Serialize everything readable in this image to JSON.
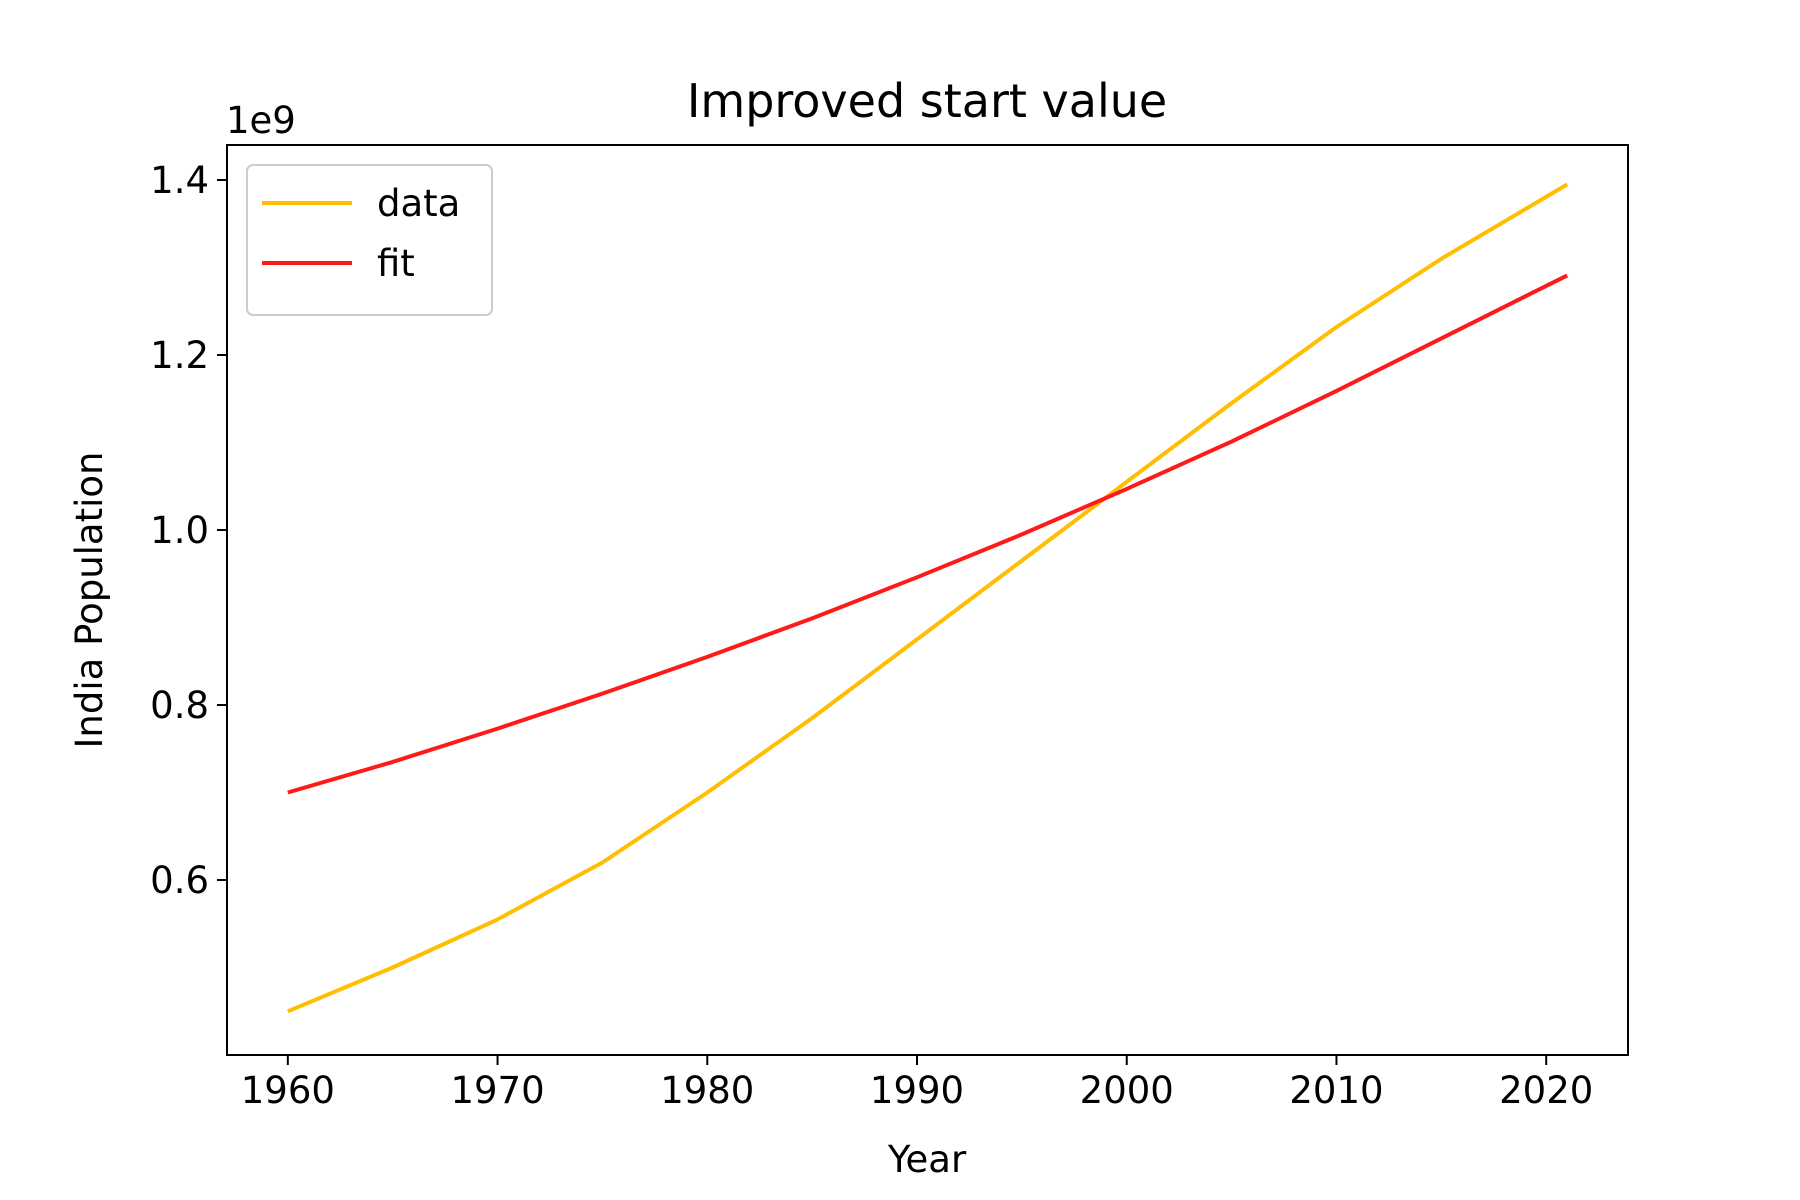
{
  "chart_data": {
    "type": "line",
    "title": "Improved start value",
    "xlabel": "Year",
    "ylabel": "India Population",
    "offset_label": "1e9",
    "xlim": [
      1957.1,
      2023.9
    ],
    "ylim": [
      0.4,
      1.44
    ],
    "x_ticks": [
      1960,
      1970,
      1980,
      1990,
      2000,
      2010,
      2020
    ],
    "x_tick_labels": [
      "1960",
      "1970",
      "1980",
      "1990",
      "2000",
      "2010",
      "2020"
    ],
    "y_ticks": [
      0.6,
      0.8,
      1.0,
      1.2,
      1.4
    ],
    "y_tick_labels": [
      "0.6",
      "0.8",
      "1.0",
      "1.2",
      "1.4"
    ],
    "grid": false,
    "legend_position": "top-left",
    "x": [
      1960,
      1965,
      1970,
      1975,
      1980,
      1985,
      1990,
      1995,
      2000,
      2005,
      2010,
      2015,
      2021
    ],
    "series": [
      {
        "name": "data",
        "color": "#ffbf00",
        "values": [
          0.45,
          0.5,
          0.555,
          0.62,
          0.7,
          0.785,
          0.875,
          0.965,
          1.055,
          1.145,
          1.232,
          1.31,
          1.395
        ]
      },
      {
        "name": "fit",
        "color": "#ff1a1a",
        "values": [
          0.7,
          0.735,
          0.773,
          0.813,
          0.855,
          0.899,
          0.946,
          0.995,
          1.047,
          1.101,
          1.159,
          1.219,
          1.291
        ]
      }
    ]
  }
}
